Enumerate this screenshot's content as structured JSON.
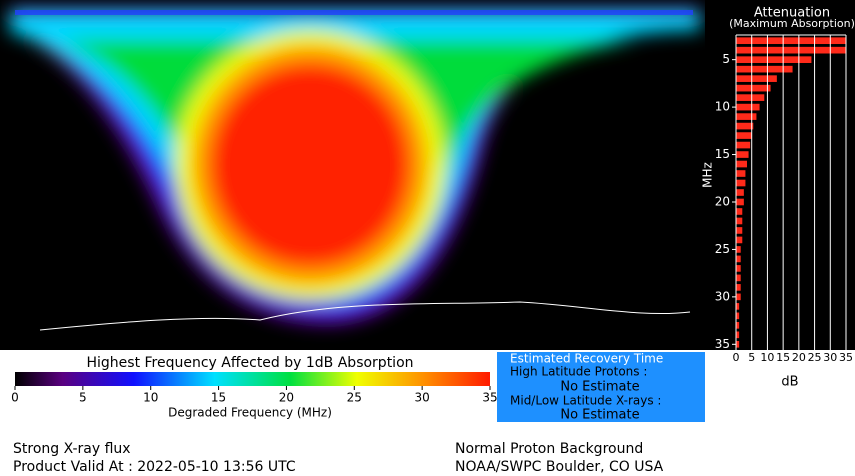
{
  "map": {
    "colorbar": {
      "title": "Highest Frequency Affected by 1dB Absorption",
      "xlim": [
        0,
        35
      ],
      "ticks": [
        0,
        5,
        10,
        15,
        20,
        25,
        30,
        35
      ],
      "label": "Degraded Frequency (MHz)"
    }
  },
  "recovery": {
    "title": "Estimated Recovery Time",
    "high_label": "High Latitude Protons :",
    "high_value": "No Estimate",
    "low_label": "Mid/Low Latitude X-rays :",
    "low_value": "No Estimate"
  },
  "chart_data": {
    "type": "hbar",
    "title": "Attenuation",
    "subtitle": "(Maximum Absorption)",
    "y_label": "MHz",
    "x_label": "dB",
    "frequencies": [
      3,
      4,
      5,
      6,
      7,
      8,
      9,
      10,
      11,
      12,
      13,
      14,
      15,
      16,
      17,
      18,
      19,
      20,
      21,
      22,
      23,
      24,
      25,
      26,
      27,
      28,
      29,
      30,
      31,
      32,
      33,
      34,
      35
    ],
    "values": [
      35,
      35,
      24,
      18,
      13,
      11,
      9,
      7.5,
      6.5,
      5.5,
      5,
      4.5,
      4,
      3.5,
      3,
      3,
      2.5,
      2.5,
      2,
      2,
      2,
      2,
      1.5,
      1.5,
      1.5,
      1.5,
      1.5,
      1.5,
      1,
      1,
      1,
      1,
      1
    ],
    "color": "#ff2a1a",
    "xlim": [
      0,
      35
    ],
    "xticks": [
      0,
      5,
      10,
      15,
      20,
      25,
      30,
      35
    ],
    "ylim": [
      2.4,
      35.6
    ],
    "yticks": [
      5,
      10,
      15,
      20,
      25,
      30,
      35
    ],
    "grid": true
  },
  "footer": {
    "left1": "Strong X-ray flux",
    "left2": "Product Valid At : 2022-05-10 13:56 UTC",
    "right1": "Normal Proton Background",
    "right2": "NOAA/SWPC Boulder, CO USA"
  }
}
